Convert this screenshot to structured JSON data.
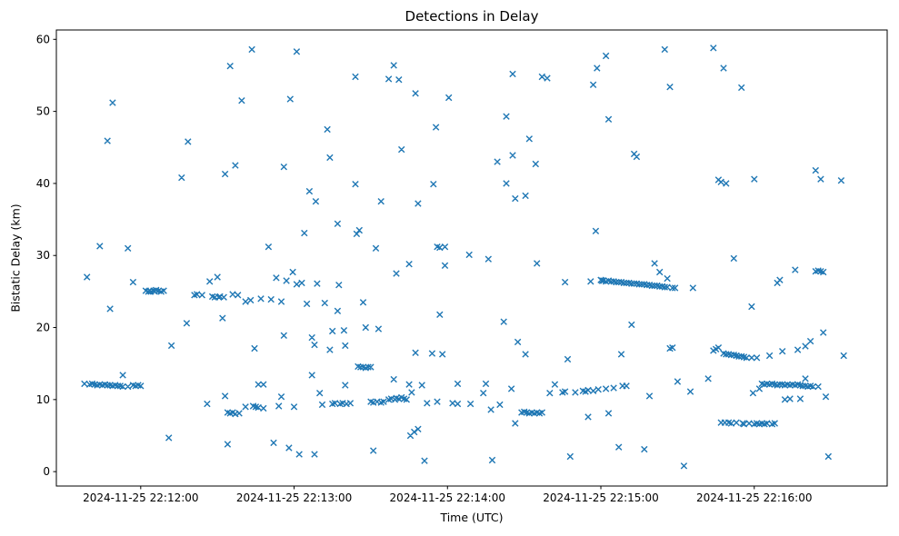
{
  "figure": {
    "title": "Detections in Delay",
    "xlabel": "Time (UTC)",
    "ylabel": "Bistatic Delay (km)",
    "background_color": "#ffffff",
    "marker_color": "#1f77b4",
    "axis_color": "#000000"
  },
  "chart_data": {
    "type": "scatter",
    "marker": "x",
    "title": "Detections in Delay",
    "xlabel": "Time (UTC)",
    "ylabel": "Bistatic Delay (km)",
    "legend": null,
    "grid": false,
    "x_unit": "seconds since 2024-11-25 22:11:00 UTC",
    "xlim": [
      27,
      352
    ],
    "ylim": [
      -2.0,
      61.3
    ],
    "x_ticks": [
      {
        "t": 60,
        "label": "2024-11-25 22:12:00"
      },
      {
        "t": 120,
        "label": "2024-11-25 22:13:00"
      },
      {
        "t": 180,
        "label": "2024-11-25 22:14:00"
      },
      {
        "t": 240,
        "label": "2024-11-25 22:15:00"
      },
      {
        "t": 300,
        "label": "2024-11-25 22:16:00"
      }
    ],
    "y_ticks": [
      0,
      10,
      20,
      30,
      40,
      50,
      60
    ],
    "points": [
      [
        39,
        27.0
      ],
      [
        44,
        31.3
      ],
      [
        47,
        45.9
      ],
      [
        48,
        22.6
      ],
      [
        49,
        51.2
      ],
      [
        38,
        12.2
      ],
      [
        40,
        12.1
      ],
      [
        41,
        12.2
      ],
      [
        42,
        12.1
      ],
      [
        43,
        12.0
      ],
      [
        44,
        12.1
      ],
      [
        45,
        12.0
      ],
      [
        46,
        12.1
      ],
      [
        47,
        12.0
      ],
      [
        48,
        12.0
      ],
      [
        49,
        11.9
      ],
      [
        50,
        12.0
      ],
      [
        51,
        11.9
      ],
      [
        52,
        11.9
      ],
      [
        53,
        11.8
      ],
      [
        53,
        13.4
      ],
      [
        55,
        11.8
      ],
      [
        55,
        31.0
      ],
      [
        57,
        12.0
      ],
      [
        57,
        26.3
      ],
      [
        58,
        11.9
      ],
      [
        59,
        12.0
      ],
      [
        60,
        11.9
      ],
      [
        62,
        25.1
      ],
      [
        63,
        25.0
      ],
      [
        63.5,
        25.1
      ],
      [
        64,
        25.0
      ],
      [
        65,
        25.1
      ],
      [
        65.5,
        25.0
      ],
      [
        66,
        25.2
      ],
      [
        67,
        25.1
      ],
      [
        68,
        25.0
      ],
      [
        69,
        25.1
      ],
      [
        71,
        4.7
      ],
      [
        72,
        17.5
      ],
      [
        76,
        40.8
      ],
      [
        78,
        20.6
      ],
      [
        78.5,
        45.8
      ],
      [
        81,
        24.5
      ],
      [
        82,
        24.6
      ],
      [
        84,
        24.5
      ],
      [
        86,
        9.4
      ],
      [
        87,
        26.4
      ],
      [
        88,
        24.3
      ],
      [
        89,
        24.2
      ],
      [
        90,
        27.0
      ],
      [
        90.5,
        24.2
      ],
      [
        91,
        24.3
      ],
      [
        92,
        21.3
      ],
      [
        92.5,
        24.2
      ],
      [
        93,
        10.5
      ],
      [
        93,
        41.3
      ],
      [
        94,
        3.8
      ],
      [
        94,
        8.2
      ],
      [
        95,
        8.1
      ],
      [
        95,
        56.3
      ],
      [
        96,
        8.2
      ],
      [
        96,
        24.6
      ],
      [
        97,
        8.0
      ],
      [
        97,
        42.5
      ],
      [
        98,
        24.5
      ],
      [
        98.5,
        8.1
      ],
      [
        99.5,
        51.5
      ],
      [
        101,
        9.0
      ],
      [
        101,
        23.6
      ],
      [
        103,
        23.8
      ],
      [
        103.5,
        58.6
      ],
      [
        104,
        9.1
      ],
      [
        104.5,
        17.1
      ],
      [
        105,
        9.0
      ],
      [
        106,
        12.1
      ],
      [
        106,
        8.9
      ],
      [
        107,
        24.0
      ],
      [
        108,
        12.1
      ],
      [
        108,
        8.8
      ],
      [
        110,
        31.2
      ],
      [
        111,
        23.9
      ],
      [
        112,
        4.0
      ],
      [
        113,
        26.9
      ],
      [
        114,
        9.1
      ],
      [
        115,
        23.6
      ],
      [
        115,
        10.4
      ],
      [
        116,
        18.9
      ],
      [
        116,
        42.3
      ],
      [
        117,
        26.5
      ],
      [
        118,
        3.3
      ],
      [
        118.5,
        51.7
      ],
      [
        119.5,
        27.7
      ],
      [
        120,
        9.0
      ],
      [
        121,
        58.3
      ],
      [
        121,
        26.0
      ],
      [
        122,
        2.4
      ],
      [
        123,
        26.2
      ],
      [
        124,
        33.1
      ],
      [
        125,
        23.3
      ],
      [
        126,
        38.9
      ],
      [
        127,
        13.4
      ],
      [
        127,
        18.6
      ],
      [
        128,
        2.4
      ],
      [
        128,
        17.6
      ],
      [
        128.5,
        37.5
      ],
      [
        129,
        26.1
      ],
      [
        130,
        10.9
      ],
      [
        131,
        9.3
      ],
      [
        132,
        23.4
      ],
      [
        133,
        47.5
      ],
      [
        134,
        43.6
      ],
      [
        134,
        16.9
      ],
      [
        135,
        9.4
      ],
      [
        135,
        19.5
      ],
      [
        136,
        9.5
      ],
      [
        137,
        34.4
      ],
      [
        137,
        22.3
      ],
      [
        137.5,
        25.9
      ],
      [
        138,
        9.4
      ],
      [
        139,
        9.5
      ],
      [
        139.5,
        19.6
      ],
      [
        140,
        17.5
      ],
      [
        140,
        12.0
      ],
      [
        140.5,
        9.4
      ],
      [
        142,
        9.5
      ],
      [
        144,
        54.8
      ],
      [
        144,
        39.9
      ],
      [
        144.5,
        33.0
      ],
      [
        145,
        14.6
      ],
      [
        145.5,
        33.5
      ],
      [
        146,
        14.5
      ],
      [
        147,
        14.5
      ],
      [
        147,
        23.5
      ],
      [
        148,
        20.0
      ],
      [
        148,
        14.4
      ],
      [
        149,
        14.5
      ],
      [
        150,
        14.5
      ],
      [
        150,
        9.7
      ],
      [
        151,
        2.9
      ],
      [
        151,
        9.6
      ],
      [
        152,
        31.0
      ],
      [
        152.5,
        9.7
      ],
      [
        153,
        19.8
      ],
      [
        154,
        37.5
      ],
      [
        154,
        9.6
      ],
      [
        155,
        9.7
      ],
      [
        157,
        54.5
      ],
      [
        157,
        10.0
      ],
      [
        158,
        10.1
      ],
      [
        159,
        56.4
      ],
      [
        159,
        12.8
      ],
      [
        159.5,
        10.0
      ],
      [
        160,
        27.5
      ],
      [
        160,
        10.2
      ],
      [
        161,
        54.4
      ],
      [
        161,
        10.1
      ],
      [
        162,
        44.7
      ],
      [
        162,
        10.3
      ],
      [
        163,
        10.1
      ],
      [
        164,
        10.0
      ],
      [
        165,
        28.8
      ],
      [
        165,
        12.1
      ],
      [
        165.5,
        5.0
      ],
      [
        166,
        11.0
      ],
      [
        167,
        5.5
      ],
      [
        167.5,
        52.5
      ],
      [
        167.5,
        16.5
      ],
      [
        168.5,
        37.2
      ],
      [
        168.5,
        5.9
      ],
      [
        170,
        12.0
      ],
      [
        171,
        1.5
      ],
      [
        172,
        9.5
      ],
      [
        174,
        16.4
      ],
      [
        174.5,
        39.9
      ],
      [
        175.5,
        47.8
      ],
      [
        176,
        31.2
      ],
      [
        176,
        9.7
      ],
      [
        177,
        21.8
      ],
      [
        177,
        31.1
      ],
      [
        178,
        16.3
      ],
      [
        179,
        31.2
      ],
      [
        179,
        28.6
      ],
      [
        180.5,
        51.9
      ],
      [
        182,
        9.5
      ],
      [
        184,
        12.2
      ],
      [
        184,
        9.4
      ],
      [
        188.5,
        30.1
      ],
      [
        189,
        9.4
      ],
      [
        194,
        10.9
      ],
      [
        195,
        12.2
      ],
      [
        196,
        29.5
      ],
      [
        197,
        8.6
      ],
      [
        197.5,
        1.6
      ],
      [
        199.5,
        43.0
      ],
      [
        200.5,
        9.3
      ],
      [
        202,
        20.8
      ],
      [
        203,
        49.3
      ],
      [
        203,
        40.0
      ],
      [
        205,
        11.5
      ],
      [
        205.5,
        55.2
      ],
      [
        205.5,
        43.9
      ],
      [
        206.5,
        37.9
      ],
      [
        206.5,
        6.7
      ],
      [
        207.5,
        18.0
      ],
      [
        209,
        8.2
      ],
      [
        210,
        8.3
      ],
      [
        210.5,
        38.3
      ],
      [
        210.5,
        16.3
      ],
      [
        211,
        8.2
      ],
      [
        212,
        46.2
      ],
      [
        212,
        8.1
      ],
      [
        213,
        8.2
      ],
      [
        214,
        8.1
      ],
      [
        214.5,
        42.7
      ],
      [
        215,
        28.9
      ],
      [
        215,
        8.2
      ],
      [
        216,
        8.1
      ],
      [
        217,
        54.8
      ],
      [
        217,
        8.2
      ],
      [
        219,
        54.6
      ],
      [
        220,
        10.9
      ],
      [
        222,
        12.1
      ],
      [
        225,
        11.0
      ],
      [
        226,
        26.3
      ],
      [
        226,
        11.1
      ],
      [
        227,
        15.6
      ],
      [
        228,
        2.1
      ],
      [
        230,
        11.0
      ],
      [
        233,
        11.2
      ],
      [
        234,
        11.1
      ],
      [
        235,
        7.6
      ],
      [
        235,
        11.3
      ],
      [
        236,
        26.4
      ],
      [
        237,
        53.7
      ],
      [
        237,
        11.2
      ],
      [
        238,
        33.4
      ],
      [
        238.5,
        56.0
      ],
      [
        239,
        11.4
      ],
      [
        240,
        26.6
      ],
      [
        240.5,
        26.5
      ],
      [
        241,
        26.5
      ],
      [
        242,
        57.7
      ],
      [
        242,
        26.4
      ],
      [
        242,
        11.5
      ],
      [
        243,
        48.9
      ],
      [
        243,
        26.5
      ],
      [
        243,
        8.1
      ],
      [
        244,
        26.4
      ],
      [
        245,
        26.4
      ],
      [
        245,
        11.6
      ],
      [
        246,
        26.3
      ],
      [
        247,
        26.3
      ],
      [
        247,
        3.4
      ],
      [
        248,
        26.3
      ],
      [
        248,
        16.3
      ],
      [
        248.5,
        11.9
      ],
      [
        249,
        26.2
      ],
      [
        250,
        26.2
      ],
      [
        250,
        11.9
      ],
      [
        251,
        26.2
      ],
      [
        252,
        26.1
      ],
      [
        252,
        20.4
      ],
      [
        253,
        26.1
      ],
      [
        253,
        44.1
      ],
      [
        254,
        43.7
      ],
      [
        254,
        26.1
      ],
      [
        255,
        26.0
      ],
      [
        256,
        26.0
      ],
      [
        257,
        26.0
      ],
      [
        257,
        3.1
      ],
      [
        258,
        25.9
      ],
      [
        259,
        25.9
      ],
      [
        259,
        10.5
      ],
      [
        260,
        25.8
      ],
      [
        261,
        25.8
      ],
      [
        261,
        28.9
      ],
      [
        262,
        25.8
      ],
      [
        263,
        25.7
      ],
      [
        263,
        27.7
      ],
      [
        264,
        25.7
      ],
      [
        265,
        25.6
      ],
      [
        265,
        58.6
      ],
      [
        266,
        25.6
      ],
      [
        266,
        26.8
      ],
      [
        267,
        53.4
      ],
      [
        267,
        17.1
      ],
      [
        268,
        25.5
      ],
      [
        268,
        17.2
      ],
      [
        269,
        25.5
      ],
      [
        270,
        12.5
      ],
      [
        272.5,
        0.8
      ],
      [
        275,
        11.1
      ],
      [
        276,
        25.5
      ],
      [
        282,
        12.9
      ],
      [
        284,
        58.8
      ],
      [
        284,
        16.8
      ],
      [
        285,
        17.0
      ],
      [
        286,
        17.2
      ],
      [
        286,
        40.5
      ],
      [
        287,
        40.2
      ],
      [
        287,
        6.8
      ],
      [
        288,
        56.0
      ],
      [
        288,
        16.4
      ],
      [
        288.5,
        6.8
      ],
      [
        289,
        16.3
      ],
      [
        289,
        40.0
      ],
      [
        290,
        16.3
      ],
      [
        290,
        6.8
      ],
      [
        291,
        16.2
      ],
      [
        291,
        6.7
      ],
      [
        292,
        29.6
      ],
      [
        292,
        16.2
      ],
      [
        293,
        16.1
      ],
      [
        293,
        6.8
      ],
      [
        294,
        16.0
      ],
      [
        295,
        53.3
      ],
      [
        295,
        16.0
      ],
      [
        295.5,
        6.7
      ],
      [
        296,
        15.9
      ],
      [
        296,
        6.6
      ],
      [
        297,
        15.8
      ],
      [
        298,
        6.7
      ],
      [
        299,
        22.9
      ],
      [
        299,
        15.8
      ],
      [
        299.5,
        10.9
      ],
      [
        300,
        40.6
      ],
      [
        300,
        6.6
      ],
      [
        301,
        15.8
      ],
      [
        301,
        6.7
      ],
      [
        302,
        11.5
      ],
      [
        302,
        6.6
      ],
      [
        303,
        12.2
      ],
      [
        303,
        6.7
      ],
      [
        304,
        12.1
      ],
      [
        304,
        6.6
      ],
      [
        305,
        12.2
      ],
      [
        305,
        6.7
      ],
      [
        306,
        16.1
      ],
      [
        306,
        12.1
      ],
      [
        307,
        12.2
      ],
      [
        307,
        6.6
      ],
      [
        308,
        12.1
      ],
      [
        308,
        6.7
      ],
      [
        309,
        12.0
      ],
      [
        309,
        26.2
      ],
      [
        310,
        12.1
      ],
      [
        310,
        26.6
      ],
      [
        311,
        16.7
      ],
      [
        311,
        12.1
      ],
      [
        312,
        12.0
      ],
      [
        312,
        10.0
      ],
      [
        313,
        12.1
      ],
      [
        314,
        12.0
      ],
      [
        314,
        10.1
      ],
      [
        315,
        12.1
      ],
      [
        316,
        28.0
      ],
      [
        316,
        12.0
      ],
      [
        317,
        16.9
      ],
      [
        317,
        12.1
      ],
      [
        318,
        12.0
      ],
      [
        318,
        10.1
      ],
      [
        319,
        11.9
      ],
      [
        320,
        17.4
      ],
      [
        320,
        12.9
      ],
      [
        320,
        11.9
      ],
      [
        321,
        11.8
      ],
      [
        322,
        18.1
      ],
      [
        322,
        11.9
      ],
      [
        323,
        11.8
      ],
      [
        324,
        41.8
      ],
      [
        324,
        27.8
      ],
      [
        325,
        27.9
      ],
      [
        325,
        11.8
      ],
      [
        326,
        40.6
      ],
      [
        326,
        27.8
      ],
      [
        327,
        19.3
      ],
      [
        327,
        27.7
      ],
      [
        328,
        10.4
      ],
      [
        329,
        2.1
      ],
      [
        334,
        40.4
      ],
      [
        335,
        16.1
      ]
    ]
  }
}
